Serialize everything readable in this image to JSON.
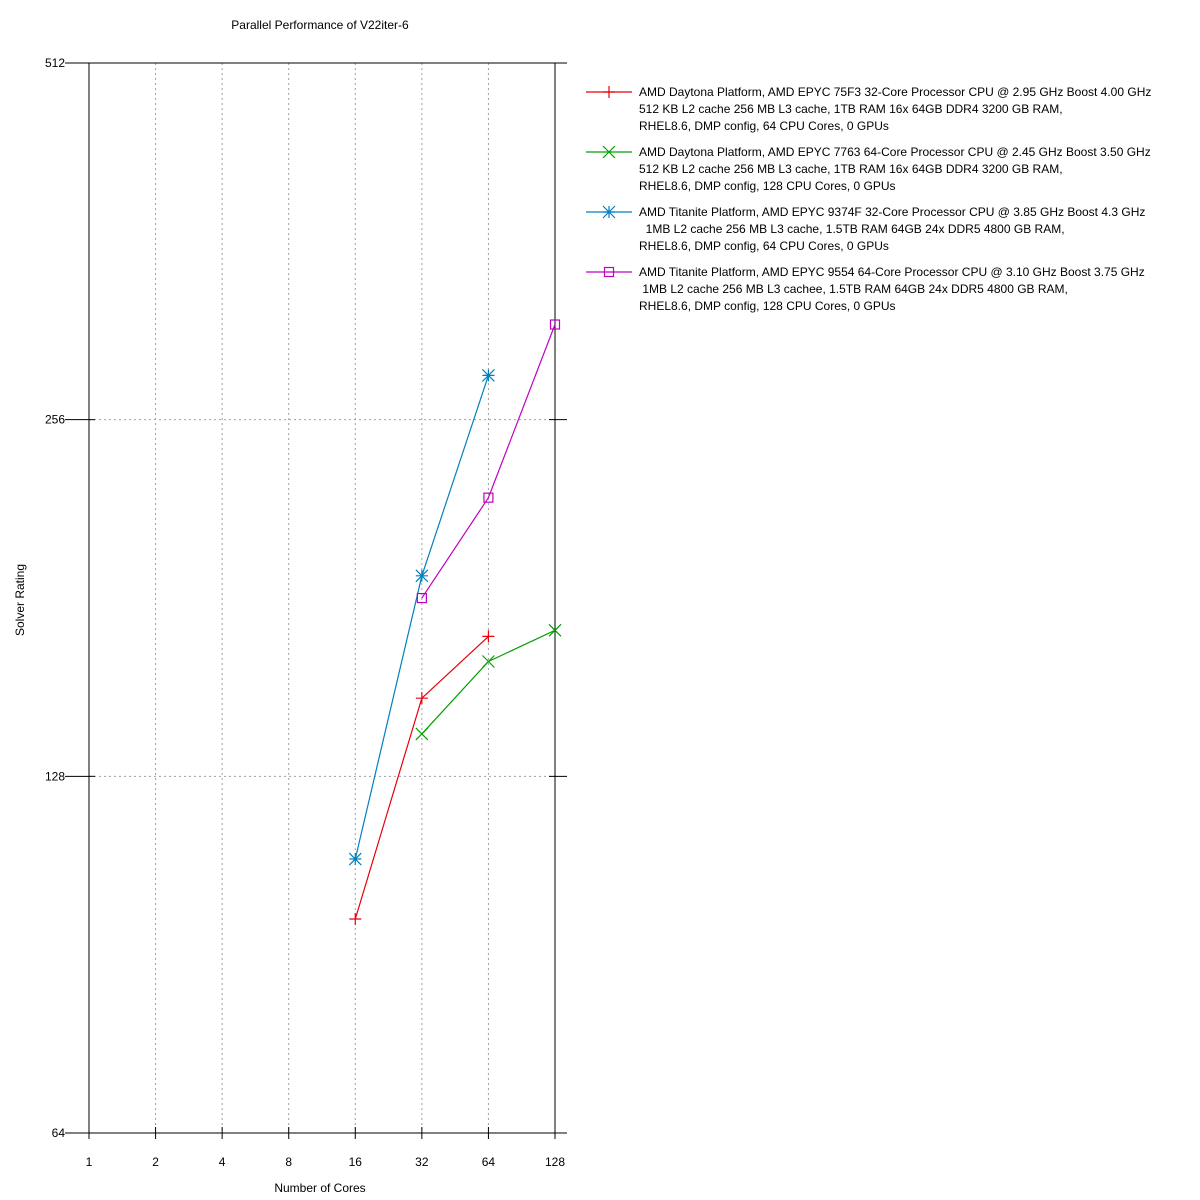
{
  "chart_data": {
    "type": "line",
    "title": "Parallel Performance of V22iter-6",
    "xlabel": "Number of Cores",
    "ylabel": "Solver Rating",
    "x_scale": "log2",
    "y_scale": "log2",
    "x_ticks": [
      1,
      2,
      4,
      8,
      16,
      32,
      64,
      128
    ],
    "y_ticks": [
      64,
      128,
      256,
      512
    ],
    "xlim": [
      1,
      128
    ],
    "ylim": [
      64,
      512
    ],
    "grid": true,
    "legend_position": "right",
    "series": [
      {
        "name_lines": [
          "AMD Daytona Platform, AMD EPYC 75F3 32-Core Processor CPU @ 2.95 GHz Boost 4.00 GHz",
          "512 KB L2 cache 256 MB L3 cache, 1TB RAM 16x 64GB DDR4 3200 GB RAM,",
          "RHEL8.6, DMP config, 64 CPU Cores, 0 GPUs"
        ],
        "color": "#e8000b",
        "marker": "plus",
        "x": [
          16,
          32,
          64
        ],
        "y": [
          97,
          149,
          168
        ]
      },
      {
        "name_lines": [
          "AMD Daytona Platform, AMD EPYC 7763 64-Core Processor CPU @ 2.45 GHz Boost 3.50 GHz",
          "512 KB L2 cache 256 MB L3 cache, 1TB RAM 16x 64GB DDR4 3200 GB RAM,",
          "RHEL8.6, DMP config, 128 CPU Cores, 0 GPUs"
        ],
        "color": "#00a000",
        "marker": "x",
        "x": [
          32,
          64,
          128
        ],
        "y": [
          139,
          160,
          170
        ]
      },
      {
        "name_lines": [
          "AMD Titanite Platform, AMD EPYC 9374F 32-Core Processor CPU @ 3.85 GHz Boost 4.3 GHz",
          "  1MB L2 cache 256 MB L3 cache, 1.5TB RAM 64GB 24x DDR5 4800 GB RAM,",
          "RHEL8.6, DMP config, 64 CPU Cores, 0 GPUs"
        ],
        "color": "#0080c0",
        "marker": "star",
        "x": [
          16,
          32,
          64
        ],
        "y": [
          109,
          189,
          279
        ]
      },
      {
        "name_lines": [
          "AMD Titanite Platform, AMD EPYC 9554 64-Core Processor CPU @ 3.10 GHz Boost 3.75 GHz",
          " 1MB L2 cache 256 MB L3 cachee, 1.5TB RAM 64GB 24x DDR5 4800 GB RAM,",
          "RHEL8.6, DMP config, 128 CPU Cores, 0 GPUs"
        ],
        "color": "#c000c0",
        "marker": "square",
        "x": [
          32,
          64,
          128
        ],
        "y": [
          181,
          220,
          308
        ]
      }
    ]
  }
}
